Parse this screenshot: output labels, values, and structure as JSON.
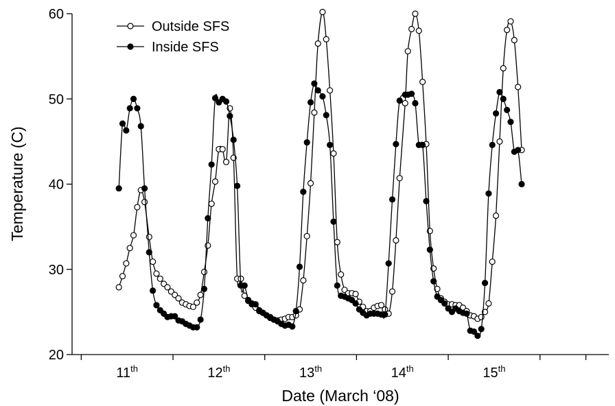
{
  "chart_data": {
    "type": "scatter",
    "xlabel": "Date (March ‘08)",
    "ylabel": "Temperature (C)",
    "xlim": [
      10.4,
      16.25
    ],
    "ylim": [
      20,
      60
    ],
    "yticks": [
      20,
      30,
      40,
      50,
      60
    ],
    "xticks": [
      {
        "x": 11,
        "day": "11",
        "suffix": "th"
      },
      {
        "x": 12,
        "day": "12",
        "suffix": "th"
      },
      {
        "x": 13,
        "day": "13",
        "suffix": "th"
      },
      {
        "x": 14,
        "day": "14",
        "suffix": "th"
      },
      {
        "x": 15,
        "day": "15",
        "suffix": "th"
      }
    ],
    "minor_xticks": [
      10.5,
      11.5,
      12.5,
      13.5,
      14.5,
      15.5,
      16.0
    ],
    "grid": false,
    "legend_position": "top-left",
    "series": [
      {
        "name": "Outside SFS",
        "marker": "open-circle",
        "color": "#000000",
        "points": [
          [
            10.91,
            27.9
          ],
          [
            10.95,
            29.2
          ],
          [
            10.99,
            30.7
          ],
          [
            11.03,
            32.5
          ],
          [
            11.07,
            34.0
          ],
          [
            11.11,
            37.3
          ],
          [
            11.15,
            39.3
          ],
          [
            11.19,
            37.9
          ],
          [
            11.24,
            33.8
          ],
          [
            11.28,
            30.9
          ],
          [
            11.32,
            29.5
          ],
          [
            11.36,
            28.9
          ],
          [
            11.4,
            28.3
          ],
          [
            11.44,
            27.9
          ],
          [
            11.48,
            27.4
          ],
          [
            11.52,
            27.0
          ],
          [
            11.56,
            26.6
          ],
          [
            11.6,
            26.1
          ],
          [
            11.64,
            25.9
          ],
          [
            11.68,
            25.7
          ],
          [
            11.72,
            25.6
          ],
          [
            11.76,
            26.1
          ],
          [
            11.8,
            27.0
          ],
          [
            11.84,
            29.7
          ],
          [
            11.88,
            32.8
          ],
          [
            11.92,
            37.7
          ],
          [
            11.96,
            40.3
          ],
          [
            12.0,
            44.1
          ],
          [
            12.04,
            44.1
          ],
          [
            12.08,
            42.6
          ],
          [
            12.12,
            48.9
          ],
          [
            12.16,
            43.1
          ],
          [
            12.2,
            28.9
          ],
          [
            12.24,
            28.9
          ],
          [
            12.28,
            26.9
          ],
          [
            12.32,
            26.3
          ],
          [
            12.36,
            25.9
          ],
          [
            12.4,
            25.5
          ],
          [
            12.44,
            25.1
          ],
          [
            12.48,
            24.9
          ],
          [
            12.52,
            24.6
          ],
          [
            12.56,
            24.4
          ],
          [
            12.6,
            24.1
          ],
          [
            12.64,
            24.0
          ],
          [
            12.68,
            24.1
          ],
          [
            12.72,
            24.2
          ],
          [
            12.76,
            24.4
          ],
          [
            12.8,
            24.4
          ],
          [
            12.84,
            24.6
          ],
          [
            12.88,
            25.3
          ],
          [
            12.92,
            28.7
          ],
          [
            12.96,
            33.9
          ],
          [
            13.0,
            40.1
          ],
          [
            13.04,
            48.4
          ],
          [
            13.08,
            56.5
          ],
          [
            13.13,
            60.2
          ],
          [
            13.17,
            57.0
          ],
          [
            13.21,
            51.0
          ],
          [
            13.25,
            43.6
          ],
          [
            13.29,
            33.2
          ],
          [
            13.33,
            29.4
          ],
          [
            13.37,
            27.6
          ],
          [
            13.41,
            27.2
          ],
          [
            13.45,
            27.2
          ],
          [
            13.49,
            27.1
          ],
          [
            13.53,
            26.2
          ],
          [
            13.57,
            25.6
          ],
          [
            13.61,
            25.1
          ],
          [
            13.65,
            25.1
          ],
          [
            13.69,
            25.5
          ],
          [
            13.73,
            25.7
          ],
          [
            13.77,
            25.8
          ],
          [
            13.81,
            25.3
          ],
          [
            13.85,
            24.8
          ],
          [
            13.89,
            27.4
          ],
          [
            13.93,
            33.4
          ],
          [
            13.97,
            40.7
          ],
          [
            14.03,
            49.5
          ],
          [
            14.06,
            55.6
          ],
          [
            14.1,
            58.2
          ],
          [
            14.14,
            60.0
          ],
          [
            14.18,
            58.0
          ],
          [
            14.22,
            52.0
          ],
          [
            14.26,
            44.7
          ],
          [
            14.3,
            34.5
          ],
          [
            14.34,
            30.1
          ],
          [
            14.38,
            27.7
          ],
          [
            14.42,
            26.6
          ],
          [
            14.46,
            26.2
          ],
          [
            14.5,
            25.9
          ],
          [
            14.54,
            25.9
          ],
          [
            14.58,
            25.8
          ],
          [
            14.62,
            25.8
          ],
          [
            14.66,
            25.5
          ],
          [
            14.7,
            25.1
          ],
          [
            14.74,
            24.6
          ],
          [
            14.78,
            24.5
          ],
          [
            14.82,
            24.2
          ],
          [
            14.86,
            24.4
          ],
          [
            14.9,
            25.0
          ],
          [
            14.94,
            26.0
          ],
          [
            14.98,
            30.9
          ],
          [
            15.02,
            36.3
          ],
          [
            15.06,
            45.0
          ],
          [
            15.1,
            53.6
          ],
          [
            15.14,
            58.1
          ],
          [
            15.18,
            59.1
          ],
          [
            15.22,
            56.9
          ],
          [
            15.26,
            51.4
          ],
          [
            15.3,
            44.0
          ]
        ]
      },
      {
        "name": "Inside SFS",
        "marker": "filled-circle",
        "color": "#000000",
        "points": [
          [
            10.91,
            39.5
          ],
          [
            10.95,
            47.1
          ],
          [
            10.99,
            46.3
          ],
          [
            11.03,
            48.9
          ],
          [
            11.07,
            50.0
          ],
          [
            11.11,
            48.9
          ],
          [
            11.15,
            46.8
          ],
          [
            11.19,
            39.5
          ],
          [
            11.24,
            32.0
          ],
          [
            11.28,
            27.5
          ],
          [
            11.32,
            25.8
          ],
          [
            11.36,
            25.2
          ],
          [
            11.4,
            24.8
          ],
          [
            11.44,
            24.4
          ],
          [
            11.48,
            24.5
          ],
          [
            11.52,
            24.5
          ],
          [
            11.56,
            24.0
          ],
          [
            11.6,
            23.9
          ],
          [
            11.64,
            23.6
          ],
          [
            11.68,
            23.4
          ],
          [
            11.72,
            23.2
          ],
          [
            11.76,
            23.2
          ],
          [
            11.8,
            24.1
          ],
          [
            11.84,
            27.7
          ],
          [
            11.88,
            36.0
          ],
          [
            11.92,
            42.3
          ],
          [
            11.96,
            50.1
          ],
          [
            12.0,
            49.6
          ],
          [
            12.04,
            50.0
          ],
          [
            12.08,
            49.7
          ],
          [
            12.12,
            48.0
          ],
          [
            12.16,
            45.2
          ],
          [
            12.2,
            39.8
          ],
          [
            12.24,
            28.1
          ],
          [
            12.28,
            28.1
          ],
          [
            12.32,
            26.4
          ],
          [
            12.36,
            26.0
          ],
          [
            12.4,
            25.9
          ],
          [
            12.44,
            25.2
          ],
          [
            12.48,
            24.9
          ],
          [
            12.52,
            24.6
          ],
          [
            12.56,
            24.3
          ],
          [
            12.6,
            24.1
          ],
          [
            12.64,
            23.9
          ],
          [
            12.68,
            23.6
          ],
          [
            12.72,
            23.4
          ],
          [
            12.76,
            23.5
          ],
          [
            12.8,
            23.3
          ],
          [
            12.84,
            25.1
          ],
          [
            12.88,
            30.3
          ],
          [
            12.92,
            39.1
          ],
          [
            12.96,
            44.9
          ],
          [
            13.0,
            49.6
          ],
          [
            13.04,
            51.8
          ],
          [
            13.08,
            51.0
          ],
          [
            13.13,
            50.3
          ],
          [
            13.17,
            48.1
          ],
          [
            13.21,
            44.6
          ],
          [
            13.25,
            35.6
          ],
          [
            13.29,
            28.1
          ],
          [
            13.33,
            26.9
          ],
          [
            13.37,
            26.8
          ],
          [
            13.41,
            26.6
          ],
          [
            13.45,
            26.4
          ],
          [
            13.49,
            26.0
          ],
          [
            13.53,
            25.3
          ],
          [
            13.57,
            24.9
          ],
          [
            13.61,
            24.6
          ],
          [
            13.65,
            24.8
          ],
          [
            13.69,
            24.8
          ],
          [
            13.73,
            24.8
          ],
          [
            13.77,
            24.7
          ],
          [
            13.81,
            24.7
          ],
          [
            13.85,
            30.7
          ],
          [
            13.89,
            38.2
          ],
          [
            13.93,
            44.7
          ],
          [
            13.97,
            49.8
          ],
          [
            14.03,
            50.5
          ],
          [
            14.06,
            50.5
          ],
          [
            14.1,
            50.6
          ],
          [
            14.14,
            49.5
          ],
          [
            14.18,
            44.6
          ],
          [
            14.22,
            44.6
          ],
          [
            14.26,
            38.0
          ],
          [
            14.3,
            32.3
          ],
          [
            14.34,
            28.6
          ],
          [
            14.38,
            26.8
          ],
          [
            14.42,
            26.4
          ],
          [
            14.46,
            26.0
          ],
          [
            14.5,
            25.4
          ],
          [
            14.54,
            25.0
          ],
          [
            14.58,
            25.4
          ],
          [
            14.62,
            25.1
          ],
          [
            14.66,
            24.9
          ],
          [
            14.7,
            24.8
          ],
          [
            14.74,
            22.8
          ],
          [
            14.78,
            22.7
          ],
          [
            14.82,
            22.2
          ],
          [
            14.86,
            23.0
          ],
          [
            14.9,
            28.4
          ],
          [
            14.94,
            38.9
          ],
          [
            14.98,
            44.6
          ],
          [
            15.02,
            48.3
          ],
          [
            15.06,
            50.8
          ],
          [
            15.1,
            50.0
          ],
          [
            15.14,
            48.7
          ],
          [
            15.18,
            47.3
          ],
          [
            15.22,
            43.8
          ],
          [
            15.26,
            44.0
          ],
          [
            15.3,
            40.0
          ]
        ]
      }
    ]
  }
}
